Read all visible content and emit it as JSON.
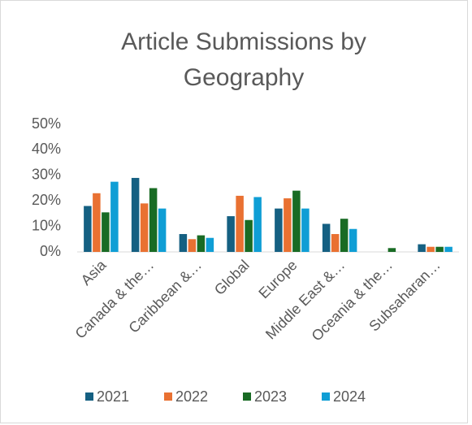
{
  "chart_data": {
    "type": "bar",
    "title": "Article Submissions by Geography",
    "categories": [
      "Asia",
      "Canada & the…",
      "Caribbean &…",
      "Global",
      "Europe",
      "Middle East &…",
      "Oceania & the…",
      "Subsaharan…"
    ],
    "series": [
      {
        "name": "2021",
        "color": "#156082",
        "values": [
          18,
          29,
          7,
          14,
          17,
          11,
          0,
          3
        ]
      },
      {
        "name": "2022",
        "color": "#e97132",
        "values": [
          23,
          19,
          5,
          22,
          21,
          7,
          0,
          2
        ]
      },
      {
        "name": "2023",
        "color": "#196b24",
        "values": [
          15.5,
          25,
          6.5,
          12.5,
          24,
          13,
          1.5,
          2
        ]
      },
      {
        "name": "2024",
        "color": "#0f9ed5",
        "values": [
          27.5,
          17,
          5.5,
          21.5,
          17,
          9,
          0,
          2
        ]
      }
    ],
    "ylim": [
      0,
      50
    ],
    "yticks": [
      {
        "value": 0,
        "label": "0%"
      },
      {
        "value": 10,
        "label": "10%"
      },
      {
        "value": 20,
        "label": "20%"
      },
      {
        "value": 30,
        "label": "30%"
      },
      {
        "value": 40,
        "label": "40%"
      },
      {
        "value": 50,
        "label": "50%"
      }
    ],
    "grid": false,
    "legend": "bottom"
  }
}
